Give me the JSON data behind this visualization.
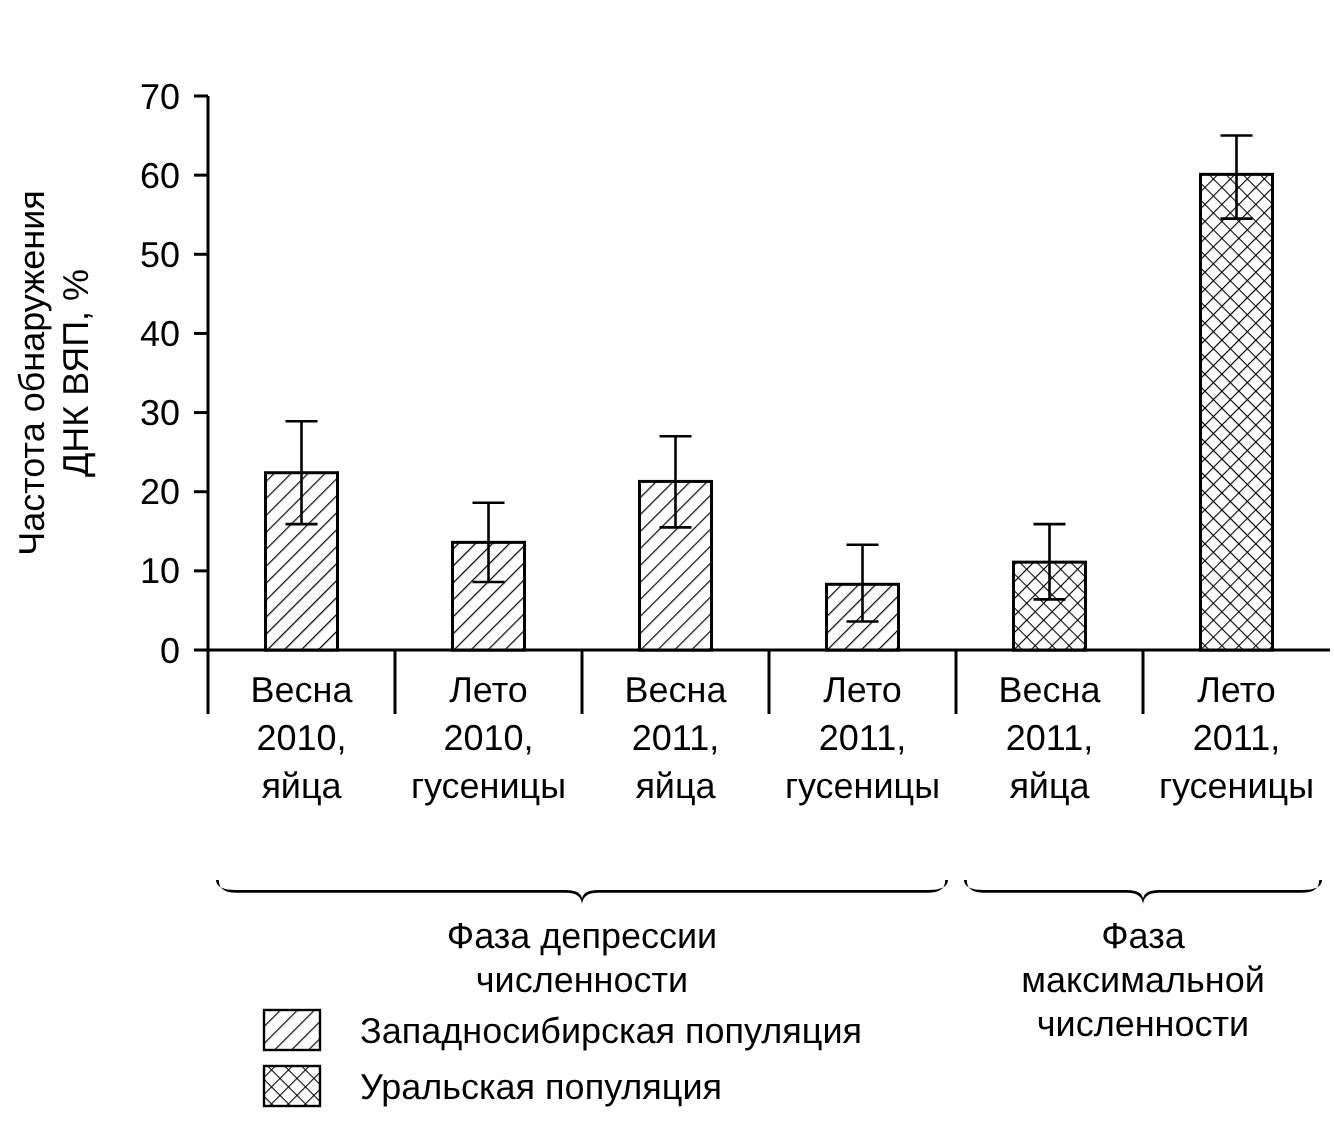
{
  "chart_data": {
    "type": "bar",
    "ylabel": "Частота обнаружения\nДНК ВЯП, %",
    "categories": [
      "Весна\n2010,\nяйца",
      "Лето\n2010,\nгусеницы",
      "Весна\n2011,\nяйца",
      "Лето\n2011,\nгусеницы",
      "Весна\n2011,\nяйца",
      "Лето\n2011,\nгусеницы"
    ],
    "series": [
      {
        "name": "Западносибирская популяция",
        "color": "#000000",
        "values": [
          22.4,
          13.6,
          21.3,
          8.3,
          null,
          null
        ],
        "errors": [
          [
            15.9,
            28.9
          ],
          [
            8.6,
            18.6
          ],
          [
            15.5,
            27.0
          ],
          [
            3.6,
            13.3
          ],
          null,
          null
        ]
      },
      {
        "name": "Уральская популяция",
        "color": "#000000",
        "values": [
          null,
          null,
          null,
          null,
          11.1,
          60.1
        ],
        "errors": [
          null,
          null,
          null,
          null,
          [
            6.4,
            15.9
          ],
          [
            54.5,
            65.0
          ]
        ]
      }
    ],
    "annotations": [
      "Фаза депрессии\nчисленности",
      "Фаза\nмаксимальной\nчисленности"
    ],
    "ylim": [
      0,
      70
    ],
    "yticks": [
      0,
      10,
      20,
      30,
      40,
      50,
      60,
      70
    ],
    "legend": "bottom left"
  }
}
